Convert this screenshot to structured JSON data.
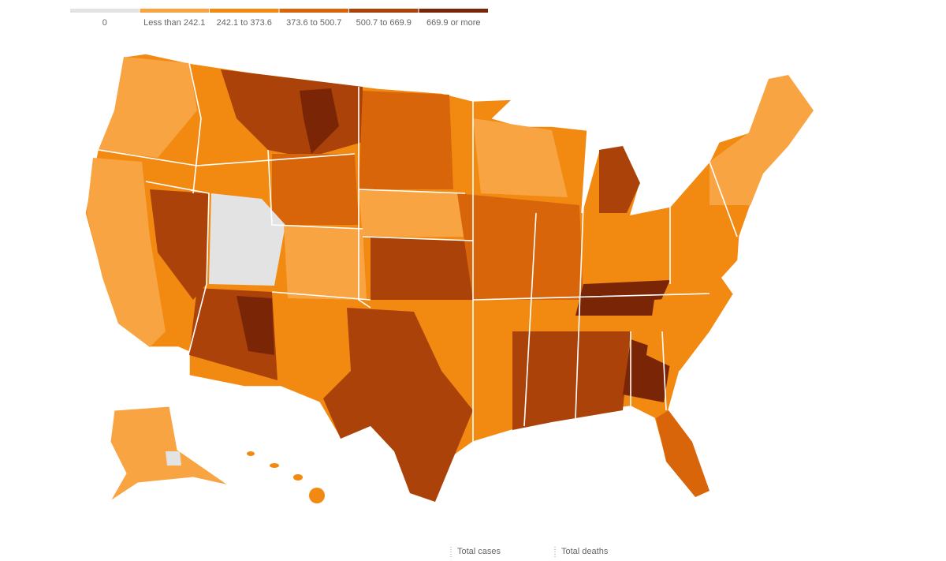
{
  "legend": {
    "items": [
      {
        "label": "0",
        "color": "#e3e3e3"
      },
      {
        "label": "Less than 242.1",
        "color": "#f9a443"
      },
      {
        "label": "242.1 to 373.6",
        "color": "#f28a12"
      },
      {
        "label": "373.6 to 500.7",
        "color": "#d9650b"
      },
      {
        "label": "500.7 to 669.9",
        "color": "#ab420a"
      },
      {
        "label": "669.9 or more",
        "color": "#7a2606"
      }
    ]
  },
  "tabs": [
    "Total cases",
    "Total deaths"
  ]
}
